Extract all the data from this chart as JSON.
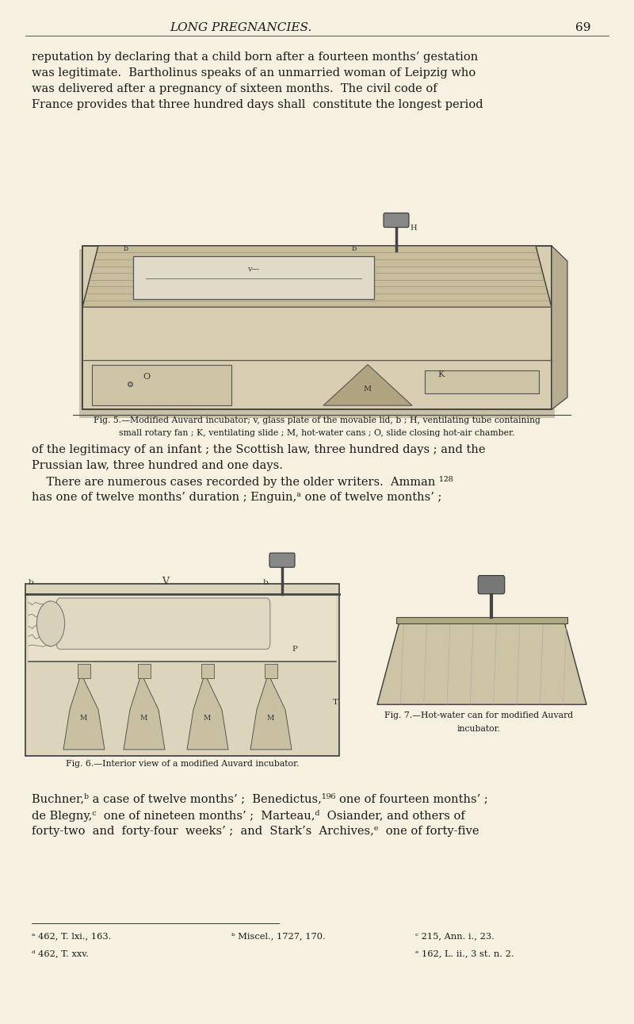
{
  "bg_color": "#f5f0e0",
  "text_color": "#1a1a1a",
  "page_width": 8.0,
  "page_height": 12.91,
  "dpi": 100,
  "header_title": "LONG PREGNANCIES.",
  "header_page": "69",
  "para1_line1": "reputation by declaring that a child born after a fourteen months’ gestation",
  "para1_line2": "was legitimate.  Bartholinus speaks of an unmarried woman of Leipzig who",
  "para1_line3": "was delivered after a pregnancy of sixteen months.  The civil code of",
  "para1_line4": "France provides that three hundred days shall  constitute the longest period",
  "fig5_cap1": "Fig. 5.—Modified Auvard incubator; v, glass plate of the movable lid, b ; H, ventilating tube containing",
  "fig5_cap2": "small rotary fan ; K, ventilating slide ; M, hot-water cans ; O, slide closing hot-air chamber.",
  "para2_line1": "of the legitimacy of an infant ; the Scottish law, three hundred days ; and the",
  "para2_line2": "Prussian law, three hundred and one days.",
  "para2_line3": "    There are numerous cases recorded by the older writers.  Amman ¹²⁸",
  "para2_line4": "has one of twelve months’ duration ; Enguin,ᵃ one of twelve months’ ;",
  "fig7_cap1": "Fig. 7.—Hot-water can for modified Auvard",
  "fig7_cap2": "incubator.",
  "fig6_cap": "Fig. 6.—Interior view of a modified Auvard incubator.",
  "para3_line1": "Buchner,ᵇ a case of twelve months’ ;  Benedictus,¹⁹⁶ one of fourteen months’ ;",
  "para3_line2": "de Blegny,ᶜ  one of nineteen months’ ;  Marteau,ᵈ  Osiander, and others of",
  "para3_line3": "forty-two  and  forty-four  weeks’ ;  and  Stark’s  Archives,ᵉ  one of forty-five",
  "fn1": "ᵃ 462, T. lxi., 163.",
  "fn2": "ᵇ Miscel., 1727, 170.",
  "fn3": "ᶜ 215, Ann. i., 23.",
  "fn4": "ᵈ 462, T. xxv.",
  "fn5": "ᵉ 162, L. ii., 3 st. n. 2."
}
